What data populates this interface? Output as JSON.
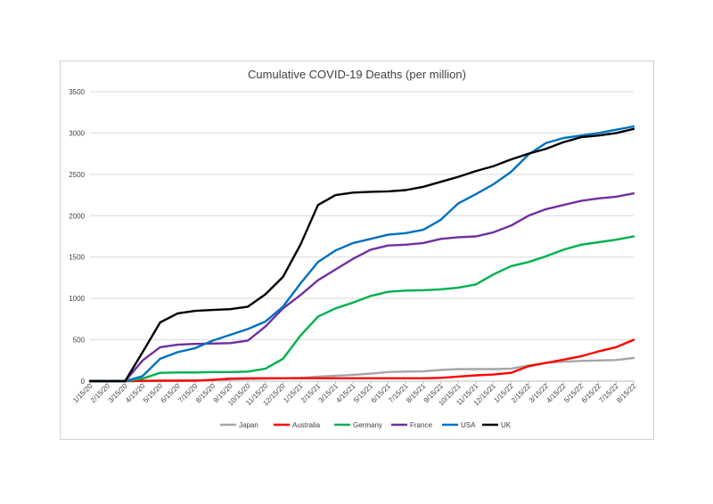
{
  "chart_data": {
    "type": "line",
    "title": "Cumulative COVID-19 Deaths (per million)",
    "xlabel": "",
    "ylabel": "",
    "ylim": [
      0,
      3500
    ],
    "yticks": [
      0,
      500,
      1000,
      1500,
      2000,
      2500,
      3000,
      3500
    ],
    "grid": "horizontal",
    "legend_position": "bottom",
    "categories": [
      "1/15/20",
      "2/15/20",
      "3/15/20",
      "4/15/20",
      "5/15/20",
      "6/15/20",
      "7/15/20",
      "8/15/20",
      "9/15/20",
      "10/15/20",
      "11/15/20",
      "12/15/20",
      "1/15/21",
      "2/15/21",
      "3/15/21",
      "4/15/21",
      "5/15/21",
      "6/15/21",
      "7/15/21",
      "8/15/21",
      "9/15/21",
      "10/15/21",
      "11/15/21",
      "12/15/21",
      "1/15/22",
      "2/15/22",
      "3/15/22",
      "4/15/22",
      "5/15/22",
      "6/15/22",
      "7/15/22",
      "8/15/22"
    ],
    "series": [
      {
        "name": "Japan",
        "color": "#a6a6a6",
        "values": [
          0,
          0,
          0,
          1,
          5,
          8,
          9,
          12,
          20,
          25,
          30,
          35,
          40,
          55,
          65,
          75,
          90,
          110,
          115,
          120,
          135,
          145,
          145,
          145,
          150,
          190,
          220,
          235,
          245,
          250,
          255,
          280
        ]
      },
      {
        "name": "Australia",
        "color": "#ff0000",
        "values": [
          0,
          0,
          0,
          3,
          4,
          4,
          4,
          15,
          30,
          35,
          35,
          35,
          35,
          35,
          35,
          35,
          35,
          35,
          35,
          35,
          40,
          55,
          70,
          80,
          100,
          180,
          220,
          260,
          300,
          360,
          410,
          500
        ]
      },
      {
        "name": "Germany",
        "color": "#00b050",
        "values": [
          0,
          0,
          0,
          30,
          100,
          105,
          105,
          110,
          110,
          115,
          150,
          270,
          550,
          780,
          880,
          950,
          1030,
          1080,
          1095,
          1100,
          1110,
          1130,
          1170,
          1290,
          1390,
          1440,
          1510,
          1590,
          1650,
          1680,
          1710,
          1750
        ]
      },
      {
        "name": "France",
        "color": "#7030a0",
        "values": [
          0,
          0,
          0,
          250,
          410,
          440,
          450,
          455,
          460,
          490,
          660,
          880,
          1040,
          1220,
          1350,
          1480,
          1590,
          1640,
          1650,
          1670,
          1720,
          1740,
          1750,
          1800,
          1880,
          2000,
          2080,
          2130,
          2180,
          2210,
          2230,
          2270
        ]
      },
      {
        "name": "USA",
        "color": "#0070c0",
        "values": [
          0,
          0,
          0,
          60,
          270,
          350,
          400,
          490,
          560,
          630,
          720,
          900,
          1180,
          1440,
          1580,
          1670,
          1720,
          1770,
          1790,
          1830,
          1950,
          2150,
          2260,
          2380,
          2530,
          2740,
          2880,
          2940,
          2970,
          3000,
          3040,
          3080
        ]
      },
      {
        "name": "UK",
        "color": "#000000",
        "values": [
          0,
          0,
          0,
          350,
          710,
          820,
          850,
          860,
          870,
          900,
          1050,
          1260,
          1650,
          2130,
          2250,
          2280,
          2290,
          2295,
          2310,
          2350,
          2410,
          2470,
          2540,
          2600,
          2680,
          2750,
          2810,
          2890,
          2950,
          2970,
          3000,
          3050
        ]
      }
    ]
  }
}
